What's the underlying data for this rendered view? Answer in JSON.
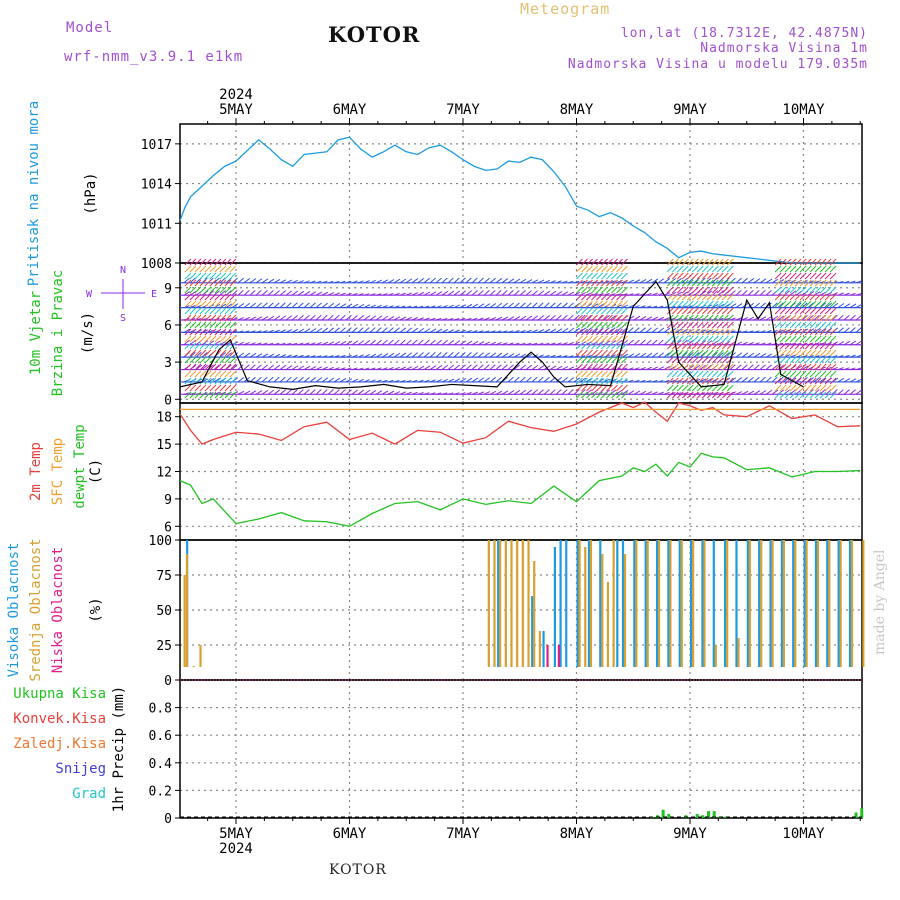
{
  "header": {
    "model_label": "Model",
    "model_name": "wrf-nmm_v3.9.1 e1km",
    "title": "KOTOR",
    "meteogram": "Meteogram",
    "lonlat": "lon,lat (18.7312E, 42.4875N)",
    "elevation": "Nadmorska Visina 1m",
    "model_elevation": "Nadmorska Visina u modelu 179.035m"
  },
  "footer": {
    "location": "KOTOR",
    "credit": "made by Angel"
  },
  "colors": {
    "pressure": "#1e9be0",
    "temp2m": "#e8403c",
    "sfc": "#f0a030",
    "dewpt": "#22c222",
    "high_cloud": "#1e9be0",
    "mid_cloud": "#d8a030",
    "low_cloud": "#e0208a",
    "wind_purple": "#8a2be2",
    "wind_blue": "#3050e0",
    "total_precip": "#22c222",
    "conv_precip": "#e8403c",
    "frozen_precip": "#f07830",
    "snow": "#4040e0",
    "hail": "#22c8c8"
  },
  "chart_data": [
    {
      "type": "line",
      "panel": "pressure",
      "ylabel": "Pritisak na nivou mora",
      "unit": "(hPa)",
      "top_year": "2024",
      "x_day_labels": [
        "5MAY",
        "6MAY",
        "7MAY",
        "8MAY",
        "9MAY",
        "10MAY"
      ],
      "ylim": [
        1008,
        1018.5
      ],
      "yticks": [
        "1008",
        "1011",
        "1014",
        "1017"
      ],
      "grid": true,
      "series": [
        {
          "x": [
            0,
            0.05,
            0.1,
            0.2,
            0.3,
            0.4,
            0.5,
            0.6,
            0.7,
            0.8,
            0.9,
            1.0,
            1.1,
            1.2,
            1.3,
            1.4,
            1.5,
            1.6,
            1.7,
            1.8,
            1.9,
            2.0,
            2.1,
            2.2,
            2.3,
            2.4,
            2.5,
            2.6,
            2.7,
            2.8,
            2.9,
            3.0,
            3.1,
            3.2,
            3.3,
            3.4,
            3.5,
            3.6,
            3.7,
            3.8,
            3.9,
            4.0,
            4.1,
            4.2,
            4.3,
            4.4,
            4.5,
            4.6,
            4.7,
            4.8,
            4.9,
            5.0,
            5.1,
            5.2,
            5.3,
            5.4,
            5.5,
            5.6,
            5.7,
            5.8,
            5.9,
            6.0
          ],
          "values": [
            1011.2,
            1012.2,
            1013.0,
            1013.8,
            1014.6,
            1015.3,
            1015.7,
            1016.5,
            1017.3,
            1016.6,
            1015.8,
            1015.3,
            1016.2,
            1016.3,
            1016.4,
            1017.3,
            1017.5,
            1016.6,
            1016.0,
            1016.4,
            1016.9,
            1016.4,
            1016.2,
            1016.7,
            1016.9,
            1016.4,
            1015.8,
            1015.3,
            1015.0,
            1015.1,
            1015.7,
            1015.6,
            1016.0,
            1015.8,
            1014.9,
            1013.8,
            1012.3,
            1012.0,
            1011.5,
            1011.8,
            1011.4,
            1010.8,
            1010.3,
            1009.6,
            1009.1,
            1008.4,
            1008.8,
            1008.9,
            1008.7,
            1008.6,
            1008.5,
            1008.4,
            1008.3,
            1008.2,
            1008.1,
            1008.0,
            1008.0,
            1008.0,
            1008.0,
            1008.0,
            1008.0,
            1008.0
          ]
        }
      ]
    },
    {
      "type": "line",
      "panel": "wind",
      "ylabel": "10m Vjetar Brzina i Pravac",
      "unit": "(m/s)",
      "compass": [
        "N",
        "W",
        "E",
        "S"
      ],
      "ylim": [
        -0.3,
        11
      ],
      "yticks": [
        "0",
        "3",
        "6",
        "9"
      ],
      "grid": true,
      "series": [
        {
          "name": "speed",
          "x": [
            0,
            0.2,
            0.35,
            0.45,
            0.6,
            0.8,
            1.0,
            1.2,
            1.4,
            1.6,
            1.8,
            2.0,
            2.2,
            2.4,
            2.6,
            2.8,
            3.0,
            3.1,
            3.2,
            3.3,
            3.4,
            3.6,
            3.8,
            4.0,
            4.1,
            4.2,
            4.3,
            4.4,
            4.6,
            4.8,
            5.0,
            5.1,
            5.2,
            5.3,
            5.5
          ],
          "values": [
            1.0,
            1.4,
            4.0,
            4.8,
            1.5,
            1.0,
            0.8,
            1.1,
            0.9,
            1.0,
            1.2,
            0.9,
            1.0,
            1.2,
            1.1,
            1.0,
            3.0,
            3.8,
            3.0,
            1.8,
            1.0,
            1.2,
            1.1,
            7.5,
            8.5,
            9.5,
            8.0,
            3.0,
            1.0,
            1.2,
            8.0,
            6.5,
            7.8,
            2.0,
            1.0
          ]
        }
      ]
    },
    {
      "type": "line",
      "panel": "temperature",
      "ylabel": [
        "2m Temp",
        "SFC Temp",
        "dewpt Temp"
      ],
      "unit": "(C)",
      "ylim": [
        4.5,
        19.5
      ],
      "yticks": [
        "6",
        "9",
        "12",
        "15",
        "18"
      ],
      "grid": true,
      "series": [
        {
          "name": "2m Temp",
          "x": [
            0,
            0.1,
            0.2,
            0.3,
            0.5,
            0.7,
            0.9,
            1.1,
            1.3,
            1.5,
            1.7,
            1.9,
            2.1,
            2.3,
            2.5,
            2.7,
            2.9,
            3.1,
            3.3,
            3.5,
            3.7,
            3.9,
            4.0,
            4.1,
            4.2,
            4.3,
            4.4,
            4.5,
            4.6,
            4.7,
            4.8,
            5.0,
            5.2,
            5.4,
            5.6,
            5.8,
            6.0
          ],
          "values": [
            18.3,
            16.5,
            15.0,
            15.5,
            16.3,
            16.1,
            15.4,
            16.9,
            17.4,
            15.5,
            16.2,
            15.0,
            16.5,
            16.3,
            15.1,
            15.7,
            17.5,
            16.8,
            16.4,
            17.2,
            18.5,
            19.5,
            19.0,
            19.6,
            18.5,
            17.5,
            19.5,
            19.2,
            18.7,
            19.0,
            18.2,
            18.0,
            19.2,
            17.8,
            18.2,
            16.9,
            17.0
          ]
        },
        {
          "name": "SFC Temp",
          "x": [
            0,
            6
          ],
          "values": [
            18.8,
            18.8
          ]
        },
        {
          "name": "dewpt Temp",
          "x": [
            0,
            0.1,
            0.2,
            0.3,
            0.5,
            0.7,
            0.9,
            1.1,
            1.3,
            1.5,
            1.7,
            1.9,
            2.1,
            2.3,
            2.5,
            2.7,
            2.9,
            3.1,
            3.3,
            3.5,
            3.7,
            3.9,
            4.0,
            4.1,
            4.2,
            4.3,
            4.4,
            4.5,
            4.6,
            4.7,
            4.8,
            5.0,
            5.2,
            5.4,
            5.6,
            5.8,
            6.0
          ],
          "values": [
            11.0,
            10.5,
            8.5,
            9.0,
            6.3,
            6.8,
            7.5,
            6.6,
            6.5,
            6.0,
            7.4,
            8.5,
            8.7,
            7.8,
            9.0,
            8.4,
            8.8,
            8.5,
            10.4,
            8.7,
            11.0,
            11.5,
            12.4,
            12.0,
            12.8,
            11.5,
            13.0,
            12.5,
            14.0,
            13.6,
            13.5,
            12.2,
            12.4,
            11.4,
            12.0,
            12.0,
            12.1
          ]
        }
      ]
    },
    {
      "type": "bar",
      "panel": "cloud",
      "ylabel": [
        "Visoka Oblacnost",
        "Srednja Oblacnost",
        "Niska Oblacnost"
      ],
      "unit": "(%)",
      "ylim": [
        0,
        100
      ],
      "yticks": [
        "0",
        "25",
        "50",
        "75",
        "100"
      ],
      "grid": true,
      "series": [
        {
          "name": "Visoka Oblacnost",
          "x": [
            0.06,
            2.8,
            3.1,
            3.2,
            3.3,
            3.35,
            3.4,
            3.5,
            3.6,
            3.7,
            3.85,
            3.9,
            4.0,
            4.1,
            4.2,
            4.3,
            4.4,
            4.5,
            4.6,
            4.7,
            4.8,
            4.9,
            5.0,
            5.1,
            5.2,
            5.3,
            5.4,
            5.5,
            5.6,
            5.7,
            5.8,
            5.9
          ],
          "values": [
            100,
            100,
            60,
            35,
            95,
            100,
            100,
            100,
            100,
            100,
            100,
            100,
            100,
            100,
            100,
            100,
            100,
            100,
            100,
            100,
            100,
            100,
            100,
            100,
            100,
            100,
            100,
            100,
            100,
            100,
            100,
            100
          ]
        },
        {
          "name": "Srednja Oblacnost",
          "x": [
            0.02,
            0.04,
            0.1,
            0.16,
            2.7,
            2.75,
            2.8,
            2.85,
            2.9,
            2.95,
            3.0,
            3.05,
            3.1,
            3.15,
            3.5,
            3.55,
            3.6,
            3.7,
            3.75,
            3.8,
            3.9,
            4.0,
            4.1,
            4.2,
            4.3,
            4.4,
            4.5,
            4.6,
            4.7,
            4.8,
            4.9,
            5.0,
            5.1,
            5.2,
            5.3,
            5.4,
            5.5,
            5.6,
            5.7,
            5.8,
            5.9,
            6.0
          ],
          "values": [
            75,
            90,
            10,
            25,
            100,
            100,
            100,
            100,
            100,
            100,
            100,
            100,
            85,
            35,
            100,
            95,
            100,
            90,
            70,
            100,
            90,
            100,
            100,
            100,
            100,
            100,
            100,
            100,
            25,
            100,
            30,
            100,
            100,
            100,
            100,
            100,
            100,
            100,
            100,
            100,
            100,
            100
          ]
        },
        {
          "name": "Niska Oblacnost",
          "x": [
            3.2,
            3.3
          ],
          "values": [
            25,
            25
          ]
        }
      ]
    },
    {
      "type": "bar",
      "panel": "precip",
      "ylabel": [
        "Ukupna Kisa",
        "Konvek.Kisa",
        "Zaledj.Kisa",
        "Snijeg",
        "Grad"
      ],
      "unit": "1hr Precip (mm)",
      "bottom_year": "2024",
      "x_day_labels": [
        "5MAY",
        "6MAY",
        "7MAY",
        "8MAY",
        "9MAY",
        "10MAY"
      ],
      "ylim": [
        0,
        1.0
      ],
      "yticks": [
        "0",
        "0.2",
        "0.4",
        "0.6",
        "0.8"
      ],
      "grid": true,
      "series": [
        {
          "name": "Ukupna Kisa",
          "x": [
            4.15,
            4.2,
            4.25,
            4.3,
            4.45,
            4.55,
            4.6,
            4.65,
            4.7,
            4.75,
            4.8,
            5.95,
            6.0
          ],
          "values": [
            0.01,
            0.02,
            0.06,
            0.03,
            0.02,
            0.03,
            0.02,
            0.05,
            0.05,
            0.01,
            0.01,
            0.04,
            0.07
          ]
        }
      ]
    }
  ]
}
